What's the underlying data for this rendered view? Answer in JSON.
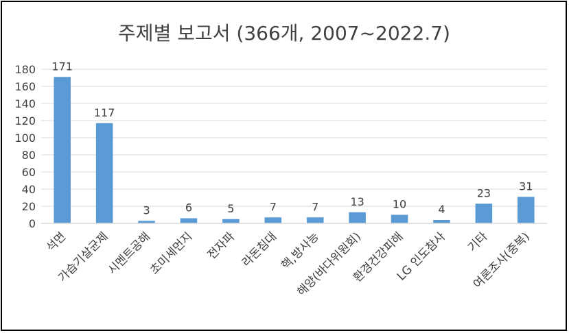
{
  "chart_data": {
    "type": "bar",
    "title": "주제별 보고서 (366개, 2007~2022.7)",
    "categories": [
      "석면",
      "가습기살균제",
      "시멘트공해",
      "초미세먼지",
      "전자파",
      "라돈침대",
      "핵,방사능",
      "해양(바다위원회)",
      "환경건강피해",
      "LG 인도참사",
      "기타",
      "여론조사(중복)"
    ],
    "values": [
      171,
      117,
      3,
      6,
      5,
      7,
      7,
      13,
      10,
      4,
      23,
      31
    ],
    "data_labels": [
      "171",
      "117",
      "3",
      "6",
      "5",
      "7",
      "7",
      "13",
      "10",
      "4",
      "23",
      "31"
    ],
    "ylim": [
      0,
      180
    ],
    "yticks": [
      0,
      20,
      40,
      60,
      80,
      100,
      120,
      140,
      160,
      180
    ],
    "ytick_labels": [
      "0",
      "20",
      "40",
      "60",
      "80",
      "100",
      "120",
      "140",
      "160",
      "180"
    ],
    "grid": true,
    "legend": "none",
    "bar_color": "#5B9BD5",
    "grid_color": "#D9D9D9",
    "text_color": "#404040"
  }
}
